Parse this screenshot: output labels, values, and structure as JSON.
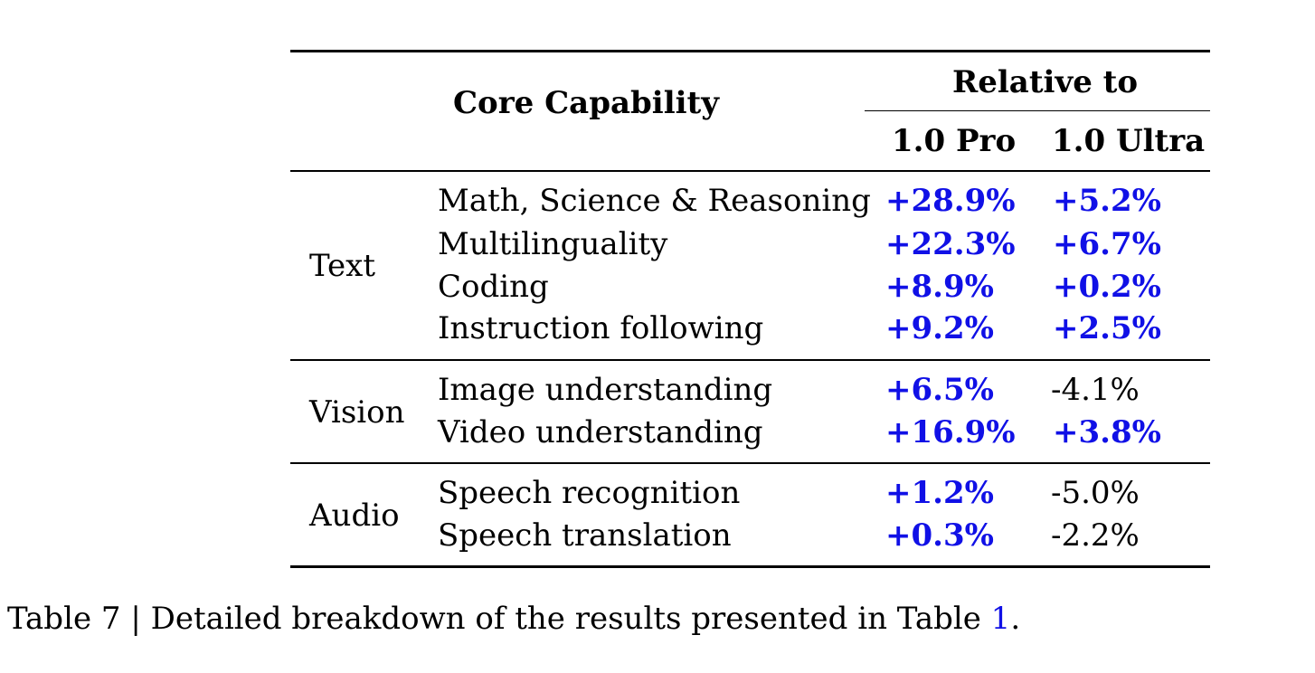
{
  "table": {
    "header": {
      "core_capability": "Core Capability",
      "relative_to": "Relative to",
      "col_pro": "1.0 Pro",
      "col_ultra": "1.0 Ultra"
    },
    "groups": [
      {
        "name": "Text",
        "rows": [
          {
            "capability": "Math, Science & Reasoning",
            "pro": "+28.9%",
            "ultra": "+5.2%"
          },
          {
            "capability": "Multilinguality",
            "pro": "+22.3%",
            "ultra": "+6.7%"
          },
          {
            "capability": "Coding",
            "pro": "+8.9%",
            "ultra": "+0.2%"
          },
          {
            "capability": "Instruction following",
            "pro": "+9.2%",
            "ultra": "+2.5%"
          }
        ]
      },
      {
        "name": "Vision",
        "rows": [
          {
            "capability": "Image understanding",
            "pro": "+6.5%",
            "ultra": "-4.1%"
          },
          {
            "capability": "Video understanding",
            "pro": "+16.9%",
            "ultra": "+3.8%"
          }
        ]
      },
      {
        "name": "Audio",
        "rows": [
          {
            "capability": "Speech recognition",
            "pro": "+1.2%",
            "ultra": "-5.0%"
          },
          {
            "capability": "Speech translation",
            "pro": "+0.3%",
            "ultra": "-2.2%"
          }
        ]
      }
    ]
  },
  "caption": {
    "text": "Table 7 | Detailed breakdown of the results presented in Table ",
    "ref": "1",
    "end": "."
  },
  "colors": {
    "positive": "#1010e6",
    "negative": "#000000"
  }
}
